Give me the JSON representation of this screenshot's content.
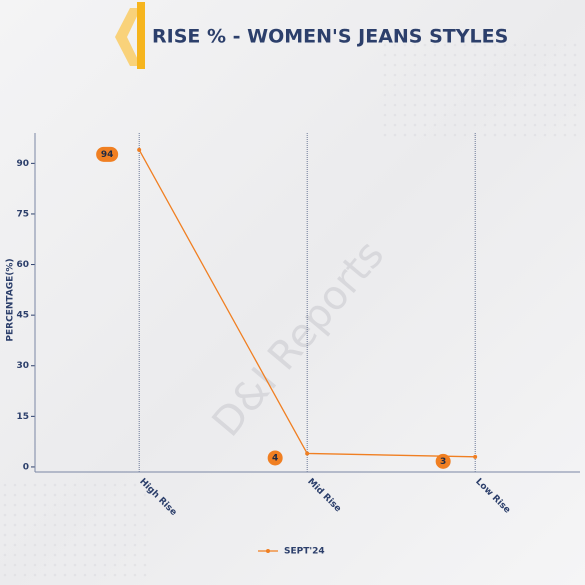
{
  "chart_data": {
    "type": "line",
    "title": "RISE % - WOMEN'S JEANS STYLES",
    "ylabel": "PERCENTAGE(%)",
    "watermark": "D&I Reports",
    "categories": [
      "High Rise",
      "Mid Rise",
      "Low Rise"
    ],
    "series": [
      {
        "name": "SEPT'24",
        "color": "#f07f22",
        "values": [
          94,
          4,
          3
        ]
      }
    ],
    "ylim": [
      -1.5,
      99
    ],
    "yticks": [
      0,
      15,
      30,
      45,
      60,
      75,
      90
    ],
    "grid": "x",
    "legend": "bottom"
  }
}
